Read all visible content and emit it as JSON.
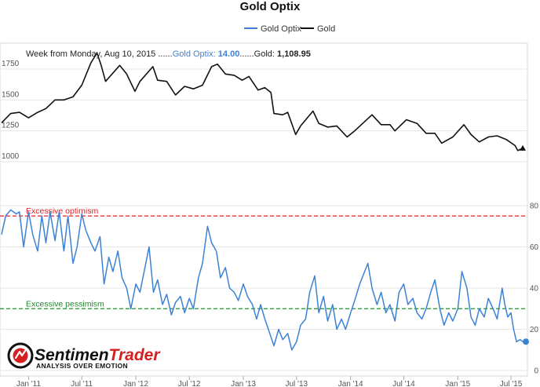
{
  "chart_data": {
    "type": "line",
    "title": "Gold Optix",
    "legend": {
      "placement": "top-right",
      "entries": [
        {
          "name": "Gold Optix",
          "color": "#3b82d6"
        },
        {
          "name": "Gold",
          "color": "#111111"
        }
      ]
    },
    "header": {
      "prefix": "Week from Monday, Aug 10, 2015 ......",
      "optix_label": "Gold Optix: ",
      "optix_value": "14.00",
      "sep": "......",
      "gold_label": "Gold: ",
      "gold_value": "1,108.95"
    },
    "x_range": [
      "2010-10-01",
      "2015-08-10"
    ],
    "x_ticks": [
      {
        "label": "Jan '11",
        "date": "2011-01-01"
      },
      {
        "label": "Jul '11",
        "date": "2011-07-01"
      },
      {
        "label": "Jan '12",
        "date": "2012-01-01"
      },
      {
        "label": "Jul '12",
        "date": "2012-07-01"
      },
      {
        "label": "Jan '13",
        "date": "2013-01-01"
      },
      {
        "label": "Jul '13",
        "date": "2013-07-01"
      },
      {
        "label": "Jan '14",
        "date": "2014-01-01"
      },
      {
        "label": "Jul '14",
        "date": "2014-07-01"
      },
      {
        "label": "Jan '15",
        "date": "2015-01-01"
      },
      {
        "label": "Jul '15",
        "date": "2015-07-01"
      }
    ],
    "gold": {
      "name": "Gold",
      "ylim": [
        1000,
        1900
      ],
      "y_ticks": [
        "1000",
        "1250",
        "1500",
        "1750"
      ],
      "last_value": 1108.95,
      "points": [
        [
          "2010-10-01",
          1315
        ],
        [
          "2010-11-01",
          1390
        ],
        [
          "2010-12-01",
          1400
        ],
        [
          "2011-01-01",
          1355
        ],
        [
          "2011-02-01",
          1400
        ],
        [
          "2011-03-01",
          1430
        ],
        [
          "2011-04-01",
          1500
        ],
        [
          "2011-05-01",
          1500
        ],
        [
          "2011-06-01",
          1525
        ],
        [
          "2011-07-01",
          1620
        ],
        [
          "2011-08-01",
          1800
        ],
        [
          "2011-08-22",
          1880
        ],
        [
          "2011-09-05",
          1780
        ],
        [
          "2011-09-20",
          1650
        ],
        [
          "2011-10-01",
          1680
        ],
        [
          "2011-11-07",
          1780
        ],
        [
          "2011-12-01",
          1710
        ],
        [
          "2011-12-29",
          1570
        ],
        [
          "2012-01-15",
          1650
        ],
        [
          "2012-02-28",
          1770
        ],
        [
          "2012-03-15",
          1660
        ],
        [
          "2012-04-15",
          1650
        ],
        [
          "2012-05-15",
          1540
        ],
        [
          "2012-06-15",
          1610
        ],
        [
          "2012-07-15",
          1590
        ],
        [
          "2012-08-15",
          1620
        ],
        [
          "2012-09-15",
          1770
        ],
        [
          "2012-10-05",
          1790
        ],
        [
          "2012-11-01",
          1710
        ],
        [
          "2012-12-01",
          1700
        ],
        [
          "2012-12-28",
          1660
        ],
        [
          "2013-01-20",
          1690
        ],
        [
          "2013-02-20",
          1580
        ],
        [
          "2013-03-15",
          1600
        ],
        [
          "2013-04-05",
          1560
        ],
        [
          "2013-04-15",
          1390
        ],
        [
          "2013-05-15",
          1380
        ],
        [
          "2013-06-01",
          1400
        ],
        [
          "2013-06-28",
          1220
        ],
        [
          "2013-07-15",
          1290
        ],
        [
          "2013-08-26",
          1410
        ],
        [
          "2013-09-15",
          1310
        ],
        [
          "2013-10-15",
          1280
        ],
        [
          "2013-11-15",
          1290
        ],
        [
          "2013-12-20",
          1200
        ],
        [
          "2014-01-15",
          1250
        ],
        [
          "2014-03-15",
          1380
        ],
        [
          "2014-04-15",
          1300
        ],
        [
          "2014-05-15",
          1300
        ],
        [
          "2014-06-01",
          1250
        ],
        [
          "2014-07-10",
          1340
        ],
        [
          "2014-08-15",
          1310
        ],
        [
          "2014-09-15",
          1230
        ],
        [
          "2014-10-15",
          1230
        ],
        [
          "2014-11-07",
          1150
        ],
        [
          "2014-12-15",
          1200
        ],
        [
          "2015-01-22",
          1300
        ],
        [
          "2015-02-15",
          1220
        ],
        [
          "2015-03-15",
          1160
        ],
        [
          "2015-04-15",
          1200
        ],
        [
          "2015-05-15",
          1210
        ],
        [
          "2015-06-15",
          1180
        ],
        [
          "2015-07-15",
          1130
        ],
        [
          "2015-07-24",
          1090
        ],
        [
          "2015-08-10",
          1108.95
        ]
      ]
    },
    "optix": {
      "name": "Gold Optix",
      "ylim": [
        0,
        88
      ],
      "y_ticks": [
        "0",
        "20",
        "40",
        "60",
        "80"
      ],
      "last_value": 14.0,
      "points": [
        [
          "2010-10-01",
          66
        ],
        [
          "2010-10-15",
          75
        ],
        [
          "2010-11-01",
          78
        ],
        [
          "2010-11-20",
          76
        ],
        [
          "2010-12-01",
          77
        ],
        [
          "2010-12-15",
          60
        ],
        [
          "2011-01-01",
          77
        ],
        [
          "2011-01-15",
          66
        ],
        [
          "2011-02-01",
          58
        ],
        [
          "2011-02-15",
          75
        ],
        [
          "2011-03-01",
          62
        ],
        [
          "2011-03-15",
          77
        ],
        [
          "2011-04-01",
          63
        ],
        [
          "2011-04-15",
          77
        ],
        [
          "2011-05-01",
          58
        ],
        [
          "2011-05-15",
          75
        ],
        [
          "2011-06-01",
          52
        ],
        [
          "2011-06-15",
          60
        ],
        [
          "2011-07-01",
          76
        ],
        [
          "2011-07-15",
          68
        ],
        [
          "2011-08-01",
          62
        ],
        [
          "2011-08-15",
          58
        ],
        [
          "2011-09-01",
          65
        ],
        [
          "2011-09-15",
          42
        ],
        [
          "2011-10-01",
          55
        ],
        [
          "2011-10-15",
          48
        ],
        [
          "2011-11-01",
          58
        ],
        [
          "2011-11-15",
          45
        ],
        [
          "2011-12-01",
          40
        ],
        [
          "2011-12-15",
          30
        ],
        [
          "2012-01-01",
          42
        ],
        [
          "2012-01-15",
          38
        ],
        [
          "2012-02-01",
          50
        ],
        [
          "2012-02-15",
          60
        ],
        [
          "2012-03-01",
          38
        ],
        [
          "2012-03-15",
          44
        ],
        [
          "2012-04-01",
          32
        ],
        [
          "2012-04-15",
          37
        ],
        [
          "2012-05-01",
          27
        ],
        [
          "2012-05-15",
          33
        ],
        [
          "2012-06-01",
          36
        ],
        [
          "2012-06-15",
          28
        ],
        [
          "2012-07-01",
          35
        ],
        [
          "2012-07-15",
          30
        ],
        [
          "2012-08-01",
          45
        ],
        [
          "2012-08-15",
          52
        ],
        [
          "2012-09-01",
          70
        ],
        [
          "2012-09-15",
          62
        ],
        [
          "2012-10-01",
          58
        ],
        [
          "2012-10-15",
          45
        ],
        [
          "2012-11-01",
          50
        ],
        [
          "2012-11-15",
          40
        ],
        [
          "2012-12-01",
          38
        ],
        [
          "2012-12-15",
          34
        ],
        [
          "2013-01-01",
          42
        ],
        [
          "2013-01-15",
          36
        ],
        [
          "2013-02-01",
          32
        ],
        [
          "2013-02-15",
          25
        ],
        [
          "2013-03-01",
          32
        ],
        [
          "2013-03-15",
          25
        ],
        [
          "2013-04-01",
          18
        ],
        [
          "2013-04-15",
          12
        ],
        [
          "2013-05-01",
          20
        ],
        [
          "2013-05-15",
          15
        ],
        [
          "2013-06-01",
          18
        ],
        [
          "2013-06-15",
          10
        ],
        [
          "2013-07-01",
          14
        ],
        [
          "2013-07-15",
          22
        ],
        [
          "2013-08-01",
          25
        ],
        [
          "2013-08-15",
          38
        ],
        [
          "2013-09-01",
          46
        ],
        [
          "2013-09-15",
          28
        ],
        [
          "2013-10-01",
          36
        ],
        [
          "2013-10-15",
          24
        ],
        [
          "2013-11-01",
          32
        ],
        [
          "2013-11-15",
          20
        ],
        [
          "2013-12-01",
          25
        ],
        [
          "2013-12-15",
          20
        ],
        [
          "2014-01-01",
          28
        ],
        [
          "2014-01-15",
          34
        ],
        [
          "2014-02-01",
          42
        ],
        [
          "2014-02-15",
          47
        ],
        [
          "2014-03-01",
          52
        ],
        [
          "2014-03-15",
          40
        ],
        [
          "2014-04-01",
          32
        ],
        [
          "2014-04-15",
          38
        ],
        [
          "2014-05-01",
          28
        ],
        [
          "2014-05-15",
          32
        ],
        [
          "2014-06-01",
          24
        ],
        [
          "2014-06-15",
          38
        ],
        [
          "2014-07-01",
          42
        ],
        [
          "2014-07-15",
          32
        ],
        [
          "2014-08-01",
          35
        ],
        [
          "2014-08-15",
          28
        ],
        [
          "2014-09-01",
          25
        ],
        [
          "2014-09-15",
          30
        ],
        [
          "2014-10-01",
          38
        ],
        [
          "2014-10-15",
          44
        ],
        [
          "2014-11-01",
          30
        ],
        [
          "2014-11-15",
          22
        ],
        [
          "2014-12-01",
          28
        ],
        [
          "2014-12-15",
          24
        ],
        [
          "2015-01-01",
          30
        ],
        [
          "2015-01-15",
          48
        ],
        [
          "2015-02-01",
          40
        ],
        [
          "2015-02-15",
          26
        ],
        [
          "2015-03-01",
          22
        ],
        [
          "2015-03-15",
          30
        ],
        [
          "2015-04-01",
          26
        ],
        [
          "2015-04-15",
          35
        ],
        [
          "2015-05-01",
          30
        ],
        [
          "2015-05-15",
          25
        ],
        [
          "2015-06-01",
          40
        ],
        [
          "2015-06-10",
          32
        ],
        [
          "2015-06-20",
          26
        ],
        [
          "2015-07-01",
          28
        ],
        [
          "2015-07-10",
          20
        ],
        [
          "2015-07-20",
          14
        ],
        [
          "2015-08-01",
          15
        ],
        [
          "2015-08-10",
          14
        ]
      ]
    },
    "thresholds": [
      {
        "label": "Excessive optimism",
        "value": 75,
        "color": "#e0202a"
      },
      {
        "label": "Excessive pessimism",
        "value": 30,
        "color": "#1e8a2a"
      }
    ]
  },
  "logo": {
    "word1": "Sentimen",
    "word2": "Trader",
    "tagline": "ANALYSIS OVER EMOTION",
    "colors": {
      "word1": "#111111",
      "word2": "#d42020"
    }
  }
}
